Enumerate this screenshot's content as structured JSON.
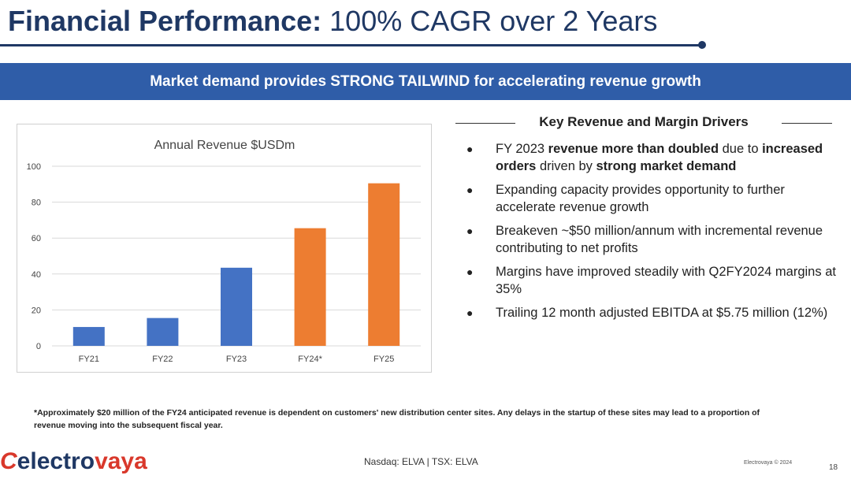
{
  "title": {
    "bold": "Financial Performance:",
    "rest": "100% CAGR over 2 Years"
  },
  "banner": "Market demand provides STRONG TAILWIND for accelerating revenue growth",
  "chart_data": {
    "type": "bar",
    "title": "Annual Revenue $USDm",
    "categories": [
      "FY21",
      "FY22",
      "FY23",
      "FY24*",
      "FY25"
    ],
    "values": [
      10.5,
      15.5,
      43.5,
      65.5,
      90.5
    ],
    "colors": [
      "#4472c4",
      "#4472c4",
      "#4472c4",
      "#ed7d31",
      "#ed7d31"
    ],
    "ylim": [
      0,
      100
    ],
    "yticks": [
      0,
      20,
      40,
      60,
      80,
      100
    ],
    "grid": true,
    "xlabel": "",
    "ylabel": ""
  },
  "drivers": {
    "heading": "Key Revenue and Margin Drivers",
    "bullet_glyph": "●",
    "items": [
      [
        {
          "t": "FY 2023 ",
          "b": false
        },
        {
          "t": "revenue more than doubled",
          "b": true
        },
        {
          "t": " due to ",
          "b": false
        },
        {
          "t": "increased orders",
          "b": true
        },
        {
          "t": " driven by ",
          "b": false
        },
        {
          "t": "strong market demand",
          "b": true
        }
      ],
      [
        {
          "t": "Expanding capacity provides opportunity to further accelerate revenue growth",
          "b": false
        }
      ],
      [
        {
          "t": "Breakeven ~$50 million/annum with incremental revenue contributing to net profits",
          "b": false
        }
      ],
      [
        {
          "t": "Margins have improved steadily with Q2FY2024 margins at 35%",
          "b": false
        }
      ],
      [
        {
          "t": "Trailing 12 month adjusted EBITDA at $5.75 million (12%)",
          "b": false
        }
      ]
    ]
  },
  "footnote": "*Approximately $20 million of the FY24 anticipated revenue is dependent on customers' new distribution center sites. Any delays in the startup of these sites may lead to a proportion of revenue moving into the subsequent fiscal year.",
  "footer": {
    "logo": {
      "mark": "C",
      "part1": "electro",
      "part2": "vaya"
    },
    "ticker": "Nasdaq: ELVA | TSX: ELVA",
    "copyright": "Electrovaya © 2024",
    "page": "18"
  }
}
